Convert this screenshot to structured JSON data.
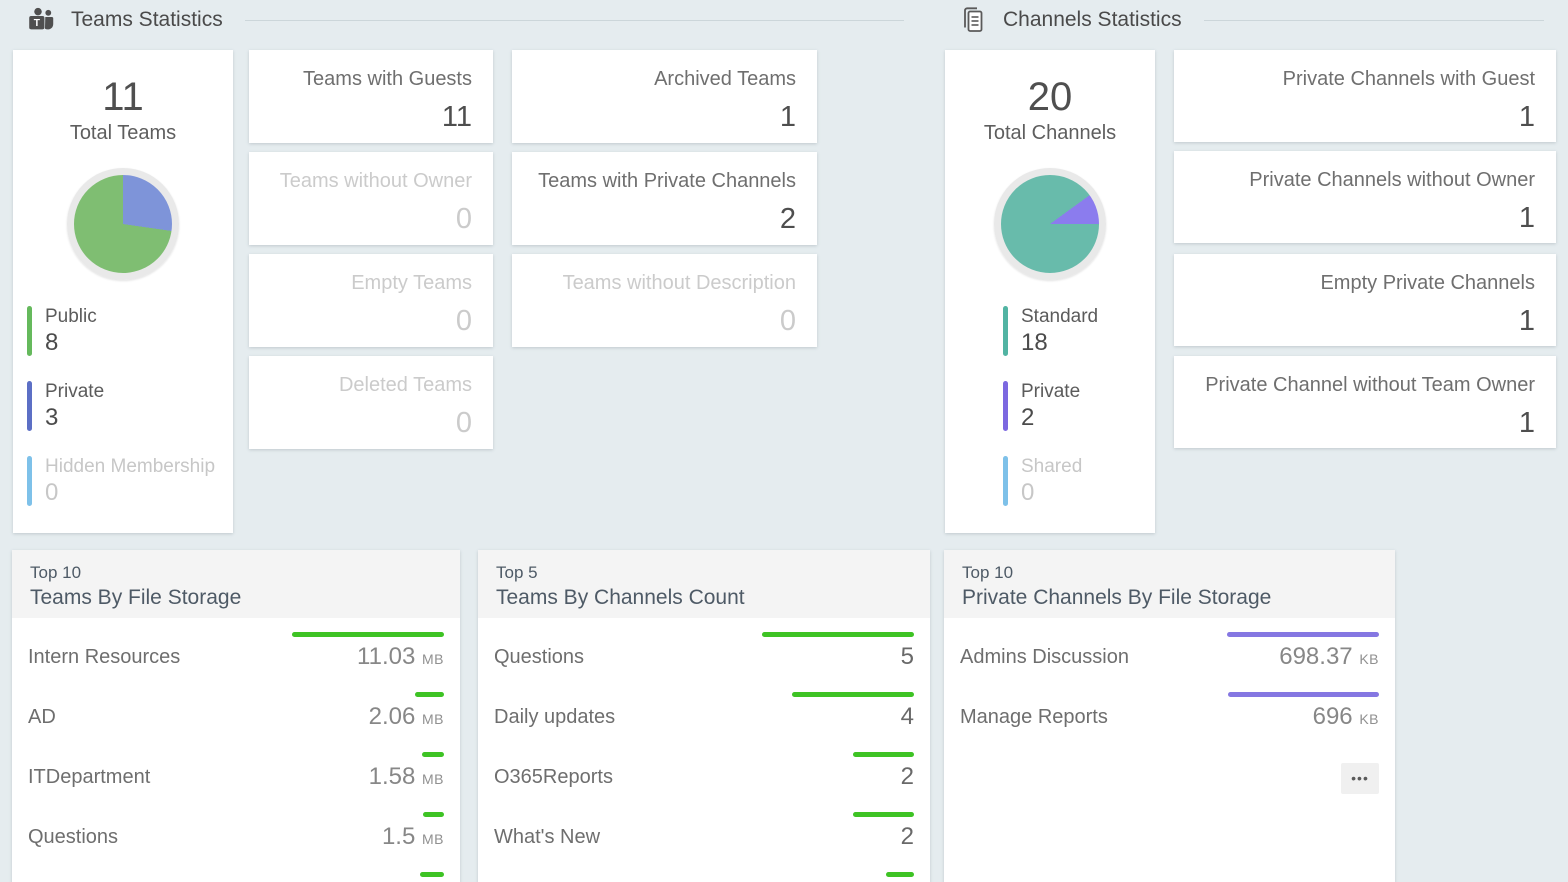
{
  "sections": {
    "teams": {
      "title": "Teams Statistics"
    },
    "channels": {
      "title": "Channels Statistics"
    }
  },
  "teams_total": {
    "value": "11",
    "label": "Total Teams",
    "pie": {
      "slices": [
        {
          "color": "#7e94d9",
          "from": 0,
          "to": 98.2
        },
        {
          "color": "#7fbe72",
          "from": 98.2,
          "to": 360
        }
      ]
    },
    "legend": [
      {
        "label": "Public",
        "value": "8",
        "color": "#65b95c",
        "muted": false
      },
      {
        "label": "Private",
        "value": "3",
        "color": "#5c6fc5",
        "muted": false
      },
      {
        "label": "Hidden Membership",
        "value": "0",
        "color": "#7ec1e9",
        "muted": true
      }
    ]
  },
  "teams_stats": [
    {
      "label": "Teams with Guests",
      "value": "11",
      "muted": false
    },
    {
      "label": "Archived Teams",
      "value": "1",
      "muted": false
    },
    {
      "label": "Teams without Owner",
      "value": "0",
      "muted": true
    },
    {
      "label": "Teams with Private Channels",
      "value": "2",
      "muted": false
    },
    {
      "label": "Empty Teams",
      "value": "0",
      "muted": true
    },
    {
      "label": "Teams without Description",
      "value": "0",
      "muted": true
    },
    {
      "label": "Deleted Teams",
      "value": "0",
      "muted": true
    }
  ],
  "channels_total": {
    "value": "20",
    "label": "Total Channels",
    "pie": {
      "slices": [
        {
          "color": "#68bbab",
          "from": 0,
          "to": 54
        },
        {
          "color": "#8b7cee",
          "from": 54,
          "to": 90
        },
        {
          "color": "#68bbab",
          "from": 90,
          "to": 360
        }
      ]
    },
    "legend": [
      {
        "label": "Standard",
        "value": "18",
        "color": "#52b4a3",
        "muted": false
      },
      {
        "label": "Private",
        "value": "2",
        "color": "#7c68e0",
        "muted": false
      },
      {
        "label": "Shared",
        "value": "0",
        "color": "#7ec1e9",
        "muted": true
      }
    ]
  },
  "channels_stats": [
    {
      "label": "Private Channels with Guest",
      "value": "1"
    },
    {
      "label": "Private Channels without Owner",
      "value": "1"
    },
    {
      "label": "Empty Private Channels",
      "value": "1"
    },
    {
      "label": "Private Channel without Team Owner",
      "value": "1"
    }
  ],
  "bottom_cards": [
    {
      "subtitle": "Top 10",
      "title": "Teams By File Storage",
      "bar_color": "#3ec324",
      "rows": [
        {
          "label": "Intern Resources",
          "value": "11.03",
          "unit": "MB",
          "ratio": 1
        },
        {
          "label": "AD",
          "value": "2.06",
          "unit": "MB",
          "ratio": 0.19
        },
        {
          "label": "ITDepartment",
          "value": "1.58",
          "unit": "MB",
          "ratio": 0.145
        },
        {
          "label": "Questions",
          "value": "1.5",
          "unit": "MB",
          "ratio": 0.138
        }
      ],
      "partial_bar_ratio": 0.16
    },
    {
      "subtitle": "Top 5",
      "title": "Teams By Channels Count",
      "bar_color": "#3ec324",
      "rows": [
        {
          "label": "Questions",
          "value": "5",
          "unit": "",
          "ratio": 1
        },
        {
          "label": "Daily updates",
          "value": "4",
          "unit": "",
          "ratio": 0.8
        },
        {
          "label": "O365Reports",
          "value": "2",
          "unit": "",
          "ratio": 0.4
        },
        {
          "label": "What's New",
          "value": "2",
          "unit": "",
          "ratio": 0.4
        }
      ],
      "partial_bar_ratio": 0.185
    },
    {
      "subtitle": "Top 10",
      "title": "Private Channels By File Storage",
      "bar_color": "#8577e2",
      "rows": [
        {
          "label": "Admins Discussion",
          "value": "698.37",
          "unit": "KB",
          "ratio": 1
        },
        {
          "label": "Manage Reports",
          "value": "696",
          "unit": "KB",
          "ratio": 0.9966
        }
      ],
      "more_button": "•••"
    }
  ]
}
